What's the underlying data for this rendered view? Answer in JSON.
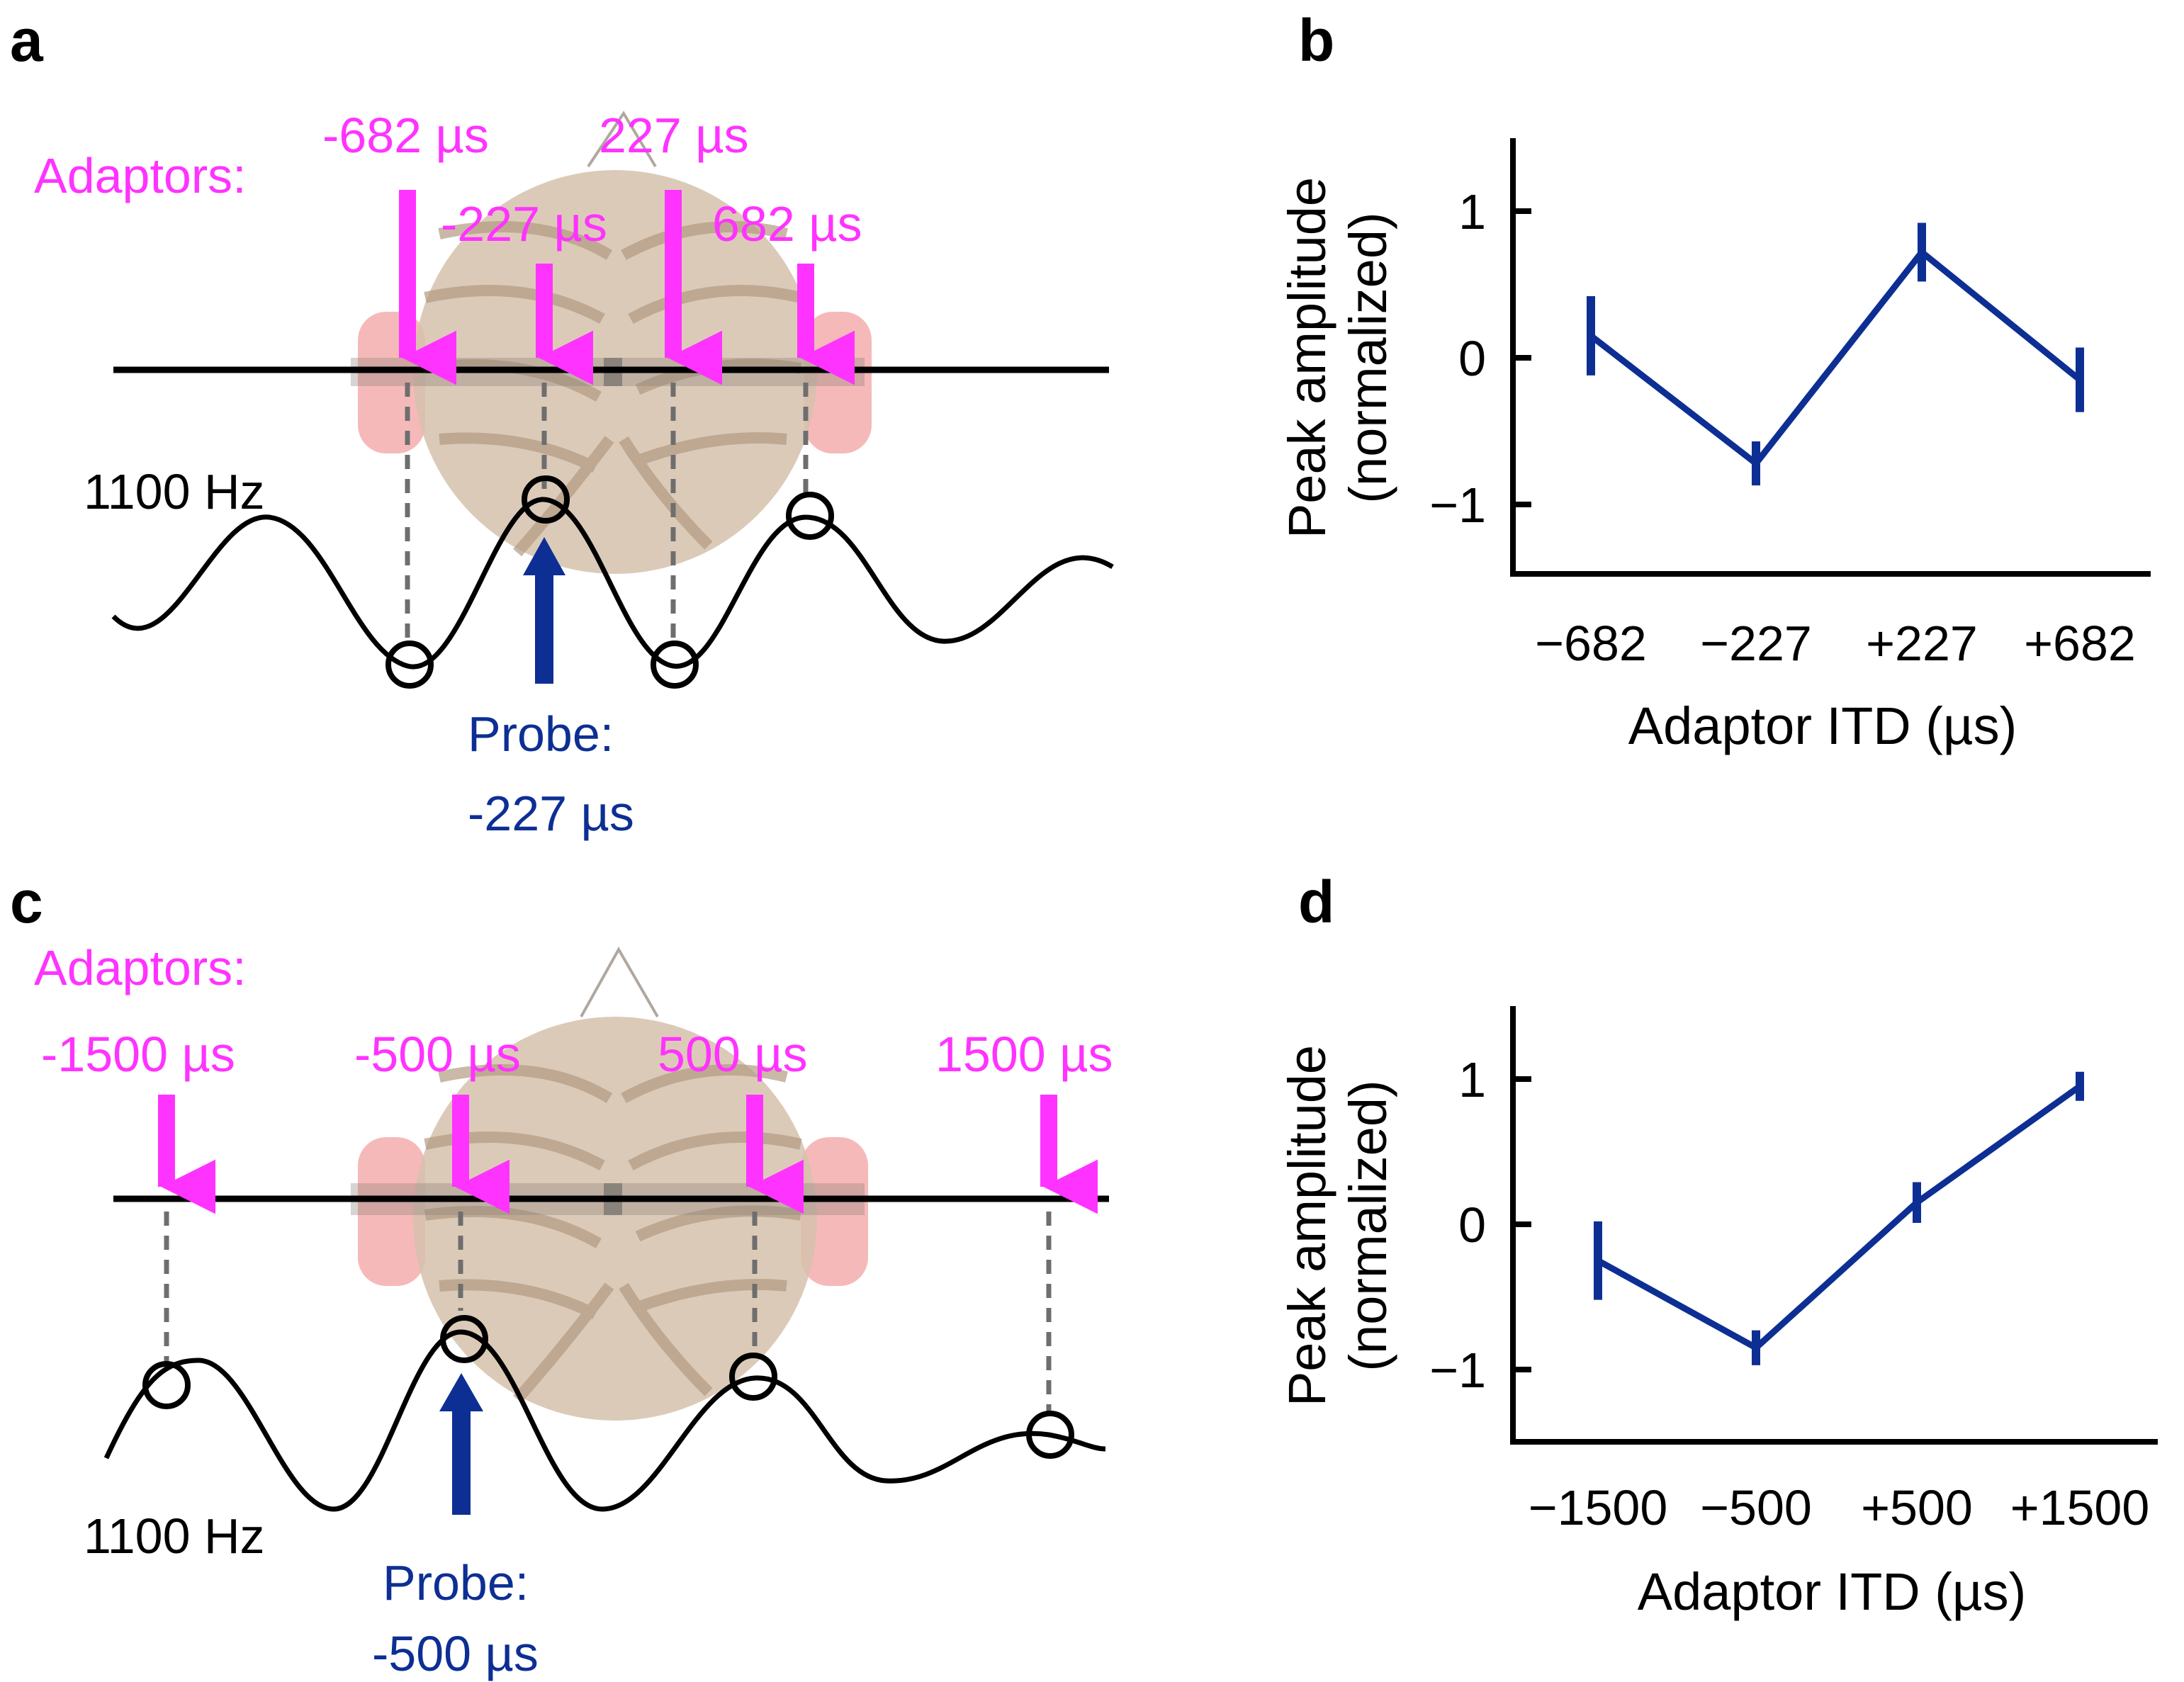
{
  "panels": {
    "a": {
      "letter": "a",
      "adaptors_label": "Adaptors:",
      "adaptor_labels": [
        "-682 µs",
        "-227 µs",
        "227 µs",
        "682 µs"
      ],
      "frequency_label": "1100 Hz",
      "probe_label": "Probe:",
      "probe_value": "-227 µs"
    },
    "b": {
      "letter": "b"
    },
    "c": {
      "letter": "c",
      "adaptors_label": "Adaptors:",
      "adaptor_labels": [
        "-1500 µs",
        "-500 µs",
        "500 µs",
        "1500 µs"
      ],
      "frequency_label": "1100 Hz",
      "probe_label": "Probe:",
      "probe_value": "-500 µs"
    },
    "d": {
      "letter": "d"
    }
  },
  "colors": {
    "adaptor": "#ff33ff",
    "probe": "#0d2f94",
    "series": "#0d2f94",
    "head": "#d6c1ad",
    "ear": "#f08a8a"
  },
  "chart_data": [
    {
      "panel": "b",
      "type": "line",
      "categories": [
        "−682",
        "−227",
        "+227",
        "+682"
      ],
      "series": [
        {
          "values": [
            0.15,
            -0.72,
            0.72,
            -0.15
          ],
          "error": [
            0.27,
            0.15,
            0.2,
            0.22
          ]
        }
      ],
      "title": "",
      "xlabel": "Adaptor ITD (µs)",
      "ylabel_lines": [
        "Peak amplitude",
        "(normalized)"
      ],
      "yticks": [
        1,
        0,
        -1
      ],
      "ytick_labels": [
        "1",
        "0",
        "−1"
      ],
      "ylim": [
        -1.5,
        1.5
      ],
      "grid": false
    },
    {
      "panel": "d",
      "type": "line",
      "categories": [
        "−1500",
        "−500",
        "+500",
        "+1500"
      ],
      "series": [
        {
          "values": [
            -0.25,
            -0.85,
            0.15,
            0.95
          ],
          "error": [
            0.27,
            0.12,
            0.14,
            0.1
          ]
        }
      ],
      "title": "",
      "xlabel": "Adaptor ITD (µs)",
      "ylabel_lines": [
        "Peak amplitude",
        "(normalized)"
      ],
      "yticks": [
        1,
        0,
        -1
      ],
      "ytick_labels": [
        "1",
        "0",
        "−1"
      ],
      "ylim": [
        -1.5,
        1.5
      ],
      "grid": false
    }
  ]
}
